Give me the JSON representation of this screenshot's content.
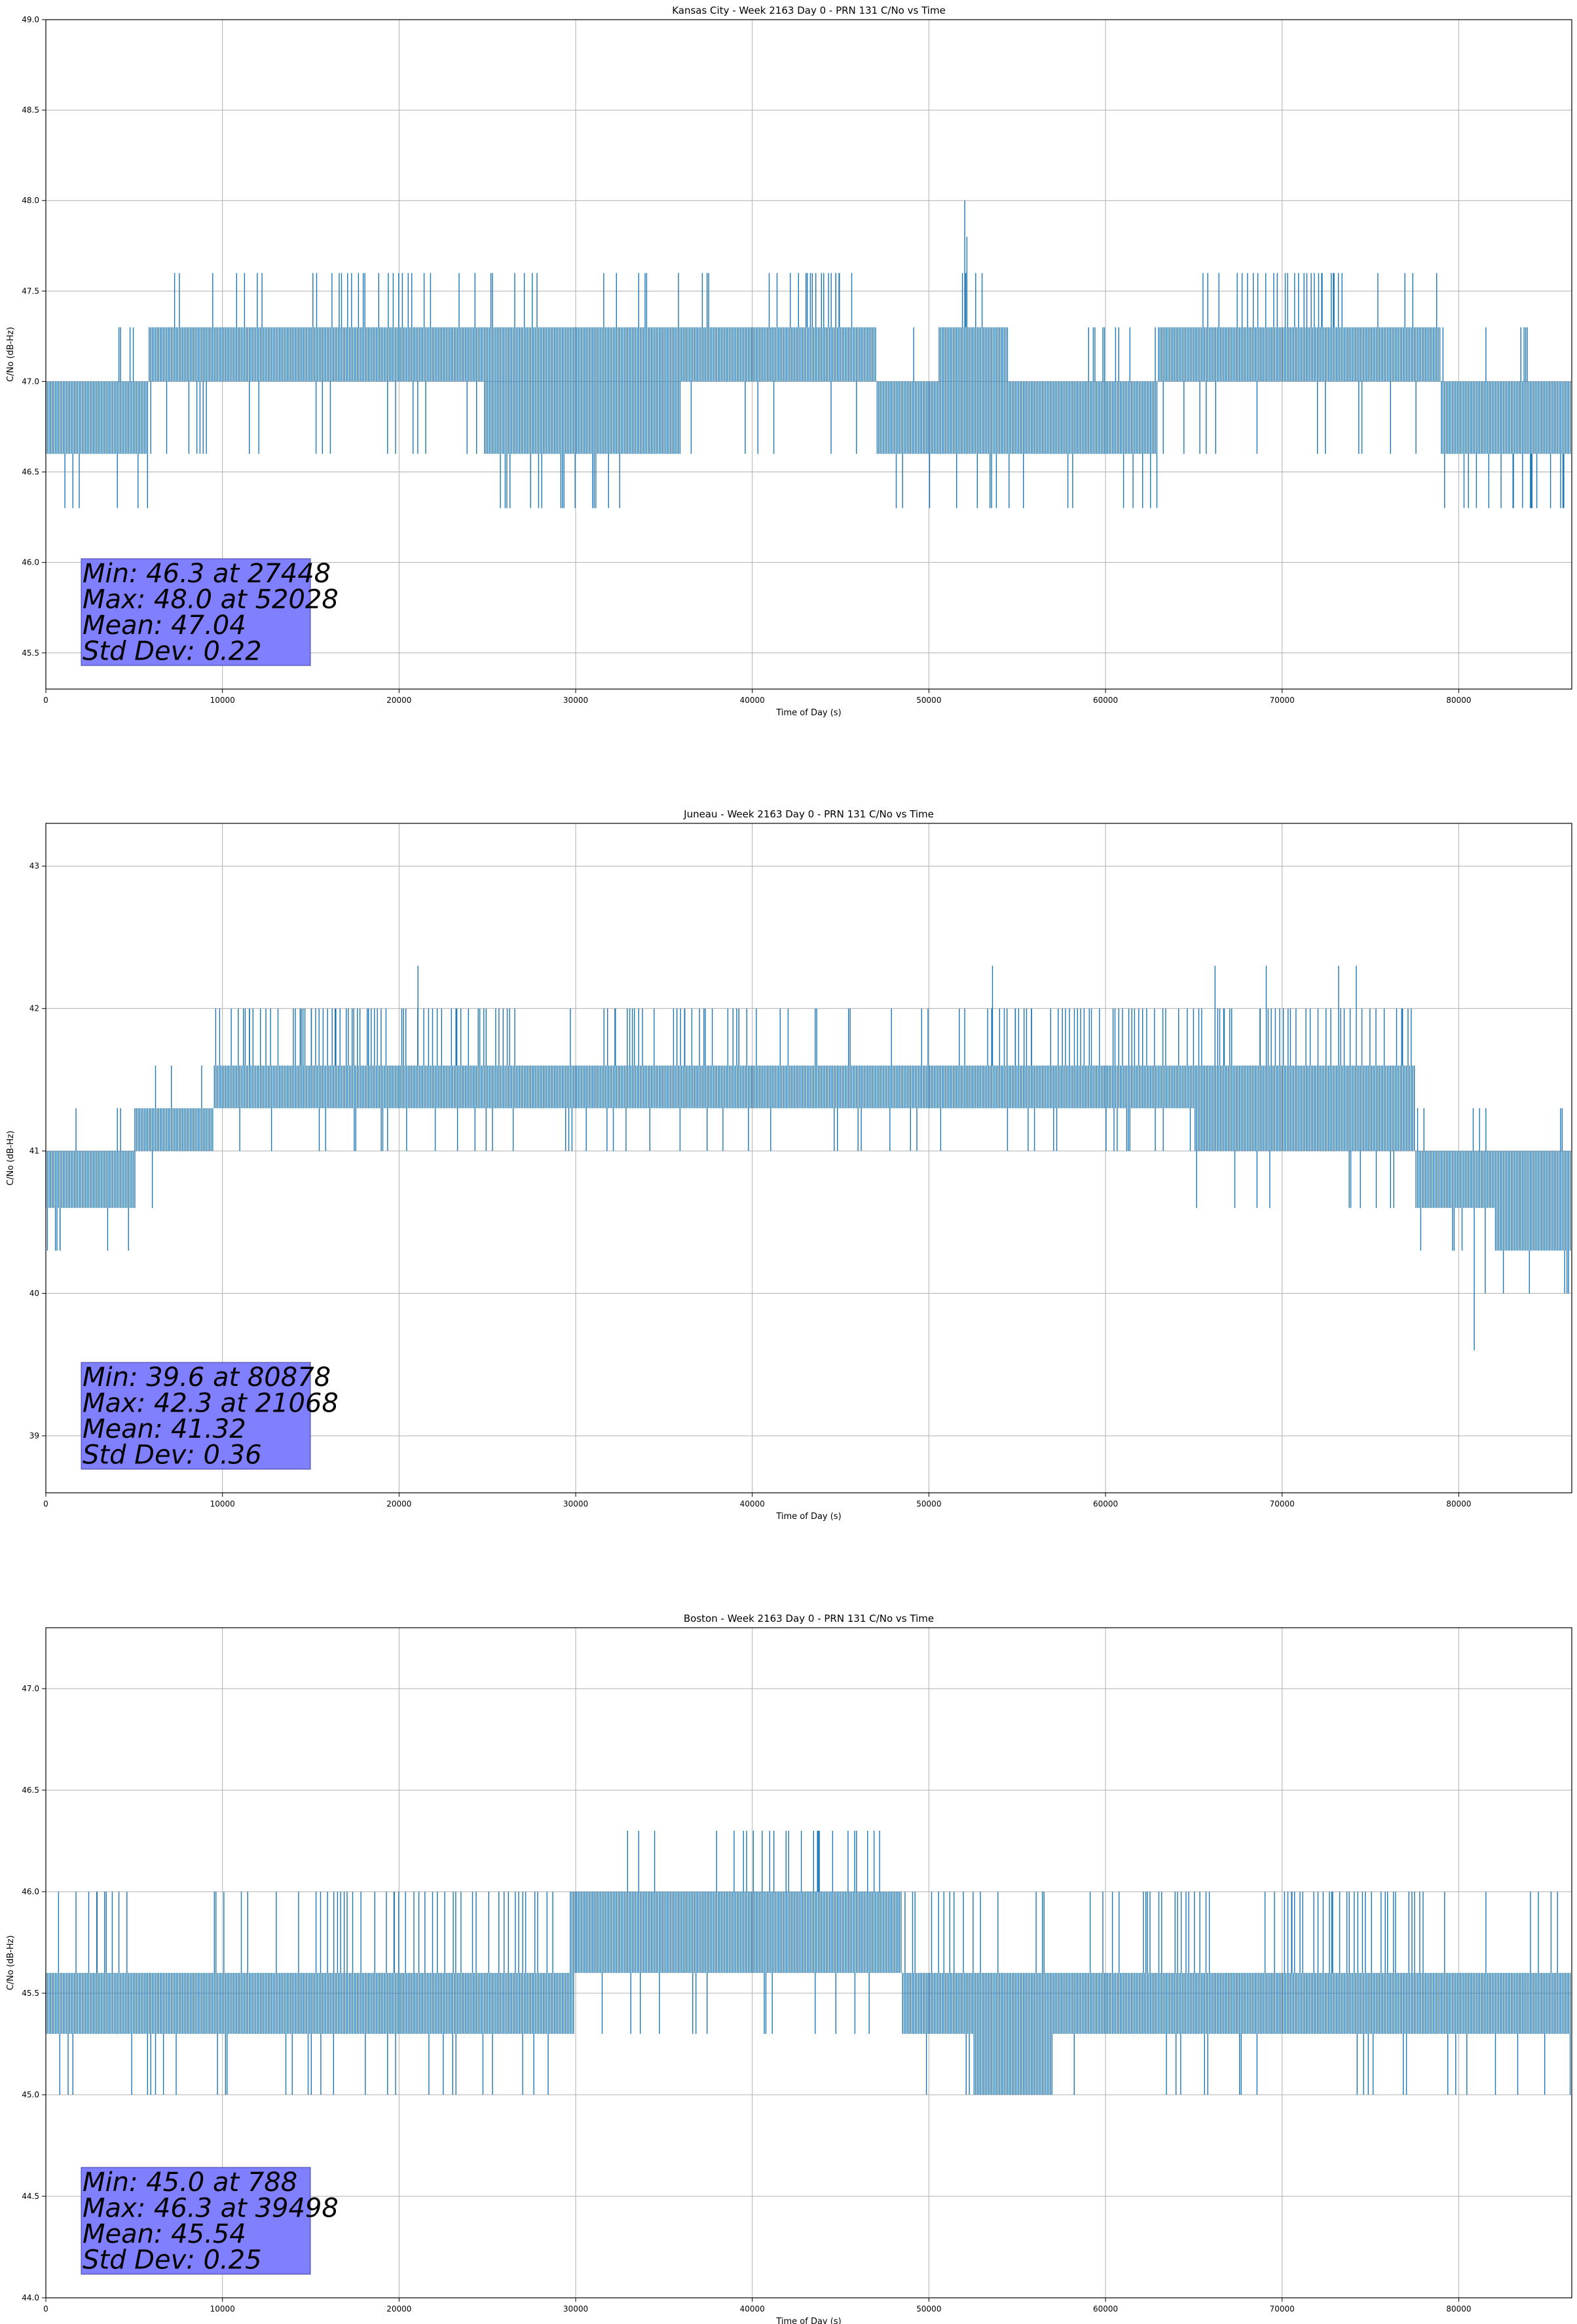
{
  "colors": {
    "line": "#1f77b4",
    "grid": "#b0b0b0",
    "stats_box_fill": "#8080ff",
    "axes": "#000000"
  },
  "chart_data": [
    {
      "type": "line",
      "title": "Kansas City - Week 2163 Day 0 - PRN 131 C/No vs Time",
      "xlabel": "Time of Day (s)",
      "ylabel": "C/No (dB-Hz)",
      "xlim": [
        0,
        86400
      ],
      "ylim": [
        45.3,
        49.0
      ],
      "xticks": [
        0,
        10000,
        20000,
        30000,
        40000,
        50000,
        60000,
        70000,
        80000
      ],
      "xtick_labels": [
        "0",
        "10000",
        "20000",
        "30000",
        "40000",
        "50000",
        "60000",
        "70000",
        "80000"
      ],
      "yticks": [
        45.5,
        46.0,
        46.5,
        47.0,
        47.5,
        48.0,
        48.5,
        49.0
      ],
      "ytick_labels": [
        "45.5",
        "46.0",
        "46.5",
        "47.0",
        "47.5",
        "48.0",
        "48.5",
        "49.0"
      ],
      "grid": true,
      "series": [
        {
          "levels": [
            46.3,
            46.6,
            47.0,
            47.3,
            47.6,
            48.0
          ],
          "segments": [
            {
              "x0": 0,
              "x1": 5800,
              "lo": 46.6,
              "hi": 47.0
            },
            {
              "x0": 5800,
              "x1": 24800,
              "lo": 47.0,
              "hi": 47.3
            },
            {
              "x0": 24800,
              "x1": 36000,
              "lo": 46.6,
              "hi": 47.3
            },
            {
              "x0": 36000,
              "x1": 48000,
              "lo": 47.0,
              "hi": 47.3
            },
            {
              "x0": 47000,
              "x1": 50500,
              "lo": 46.6,
              "hi": 47.0
            },
            {
              "x0": 50500,
              "x1": 54500,
              "lo": 46.6,
              "hi": 47.3
            },
            {
              "x0": 54500,
              "x1": 63000,
              "lo": 46.6,
              "hi": 47.0
            },
            {
              "x0": 63000,
              "x1": 79000,
              "lo": 47.0,
              "hi": 47.3
            },
            {
              "x0": 79000,
              "x1": 86400,
              "lo": 46.6,
              "hi": 47.0
            }
          ],
          "spikes": [
            {
              "x": 27448,
              "y": 46.3
            },
            {
              "x": 52028,
              "y": 48.0
            },
            {
              "x": 52150,
              "y": 47.8
            },
            {
              "x": 79200,
              "y": 46.3
            },
            {
              "x": 80300,
              "y": 46.3
            },
            {
              "x": 81700,
              "y": 46.3
            },
            {
              "x": 82400,
              "y": 46.3
            },
            {
              "x": 83100,
              "y": 46.3
            },
            {
              "x": 84100,
              "y": 46.3
            },
            {
              "x": 85200,
              "y": 46.3
            },
            {
              "x": 85900,
              "y": 46.3
            }
          ],
          "up_bursts": [
            {
              "x0": 15200,
              "x1": 20800,
              "y": 47.6
            },
            {
              "x0": 40500,
              "x1": 45000,
              "y": 47.6
            },
            {
              "x0": 51800,
              "x1": 52400,
              "y": 47.6
            },
            {
              "x0": 67400,
              "x1": 73500,
              "y": 47.6
            }
          ]
        }
      ],
      "stats": [
        "Min: 46.3 at 27448",
        "Max: 48.0 at 52028",
        "Mean: 47.04",
        "Std Dev: 0.22"
      ]
    },
    {
      "type": "line",
      "title": "Juneau - Week 2163 Day 0 - PRN 131 C/No vs Time",
      "xlabel": "Time of Day (s)",
      "ylabel": "C/No (dB-Hz)",
      "xlim": [
        0,
        86400
      ],
      "ylim": [
        38.6,
        43.3
      ],
      "xticks": [
        0,
        10000,
        20000,
        30000,
        40000,
        50000,
        60000,
        70000,
        80000
      ],
      "xtick_labels": [
        "0",
        "10000",
        "20000",
        "30000",
        "40000",
        "50000",
        "60000",
        "70000",
        "80000"
      ],
      "yticks": [
        39,
        40,
        41,
        42,
        43
      ],
      "ytick_labels": [
        "39",
        "40",
        "41",
        "42",
        "43"
      ],
      "grid": true,
      "series": [
        {
          "levels": [
            39.6,
            40.0,
            40.3,
            40.6,
            41.0,
            41.3,
            41.6,
            42.0,
            42.3
          ],
          "segments": [
            {
              "x0": 0,
              "x1": 5000,
              "lo": 40.6,
              "hi": 41.0
            },
            {
              "x0": 5000,
              "x1": 9500,
              "lo": 41.0,
              "hi": 41.3
            },
            {
              "x0": 9500,
              "x1": 39500,
              "lo": 41.3,
              "hi": 41.6
            },
            {
              "x0": 39500,
              "x1": 65000,
              "lo": 41.3,
              "hi": 41.6
            },
            {
              "x0": 65000,
              "x1": 77500,
              "lo": 41.0,
              "hi": 41.6
            },
            {
              "x0": 77500,
              "x1": 82000,
              "lo": 40.6,
              "hi": 41.0
            },
            {
              "x0": 82000,
              "x1": 86400,
              "lo": 40.3,
              "hi": 41.0
            }
          ],
          "spikes": [
            {
              "x": 80878,
              "y": 39.6
            },
            {
              "x": 21068,
              "y": 42.3
            },
            {
              "x": 53600,
              "y": 42.3
            },
            {
              "x": 66200,
              "y": 42.3
            },
            {
              "x": 69100,
              "y": 42.3
            },
            {
              "x": 73200,
              "y": 42.3
            },
            {
              "x": 74200,
              "y": 42.3
            },
            {
              "x": 800,
              "y": 40.3
            },
            {
              "x": 3500,
              "y": 40.3
            },
            {
              "x": 81500,
              "y": 40.0
            },
            {
              "x": 84000,
              "y": 40.0
            },
            {
              "x": 86000,
              "y": 40.0
            }
          ],
          "up_bursts": [
            {
              "x0": 9500,
              "x1": 26500,
              "y": 42.0
            },
            {
              "x0": 31500,
              "x1": 39500,
              "y": 42.0
            },
            {
              "x0": 51500,
              "x1": 77000,
              "y": 42.0
            }
          ]
        }
      ],
      "stats": [
        "Min: 39.6 at 80878",
        "Max: 42.3 at 21068",
        "Mean: 41.32",
        "Std Dev: 0.36"
      ]
    },
    {
      "type": "line",
      "title": "Boston - Week 2163 Day 0 - PRN 131 C/No vs Time",
      "xlabel": "Time of Day (s)",
      "ylabel": "C/No (dB-Hz)",
      "xlim": [
        0,
        86400
      ],
      "ylim": [
        44.0,
        47.3
      ],
      "xticks": [
        0,
        10000,
        20000,
        30000,
        40000,
        50000,
        60000,
        70000,
        80000
      ],
      "xtick_labels": [
        "0",
        "10000",
        "20000",
        "30000",
        "40000",
        "50000",
        "60000",
        "70000",
        "80000"
      ],
      "yticks": [
        44.0,
        44.5,
        45.0,
        45.5,
        46.0,
        46.5,
        47.0
      ],
      "ytick_labels": [
        "44.0",
        "44.5",
        "45.0",
        "45.5",
        "46.0",
        "46.5",
        "47.0"
      ],
      "grid": true,
      "series": [
        {
          "levels": [
            45.0,
            45.3,
            45.6,
            46.0,
            46.3
          ],
          "segments": [
            {
              "x0": 0,
              "x1": 29800,
              "lo": 45.3,
              "hi": 45.6
            },
            {
              "x0": 29800,
              "x1": 48500,
              "lo": 45.6,
              "hi": 46.0
            },
            {
              "x0": 48500,
              "x1": 86400,
              "lo": 45.3,
              "hi": 45.6
            },
            {
              "x0": 52500,
              "x1": 57000,
              "lo": 45.0,
              "hi": 45.6
            }
          ],
          "spikes": [
            {
              "x": 788,
              "y": 45.0
            },
            {
              "x": 39498,
              "y": 46.3
            }
          ],
          "up_bursts": [
            {
              "x0": 2800,
              "x1": 3800,
              "y": 46.0
            },
            {
              "x0": 15500,
              "x1": 29800,
              "y": 46.0
            },
            {
              "x0": 39400,
              "x1": 47500,
              "y": 46.3
            },
            {
              "x0": 48500,
              "x1": 52500,
              "y": 46.0
            },
            {
              "x0": 60500,
              "x1": 66000,
              "y": 46.0
            },
            {
              "x0": 70000,
              "x1": 78000,
              "y": 46.0
            }
          ]
        }
      ],
      "stats": [
        "Min: 45.0 at 788",
        "Max: 46.3 at 39498",
        "Mean: 45.54",
        "Std Dev: 0.25"
      ]
    }
  ]
}
